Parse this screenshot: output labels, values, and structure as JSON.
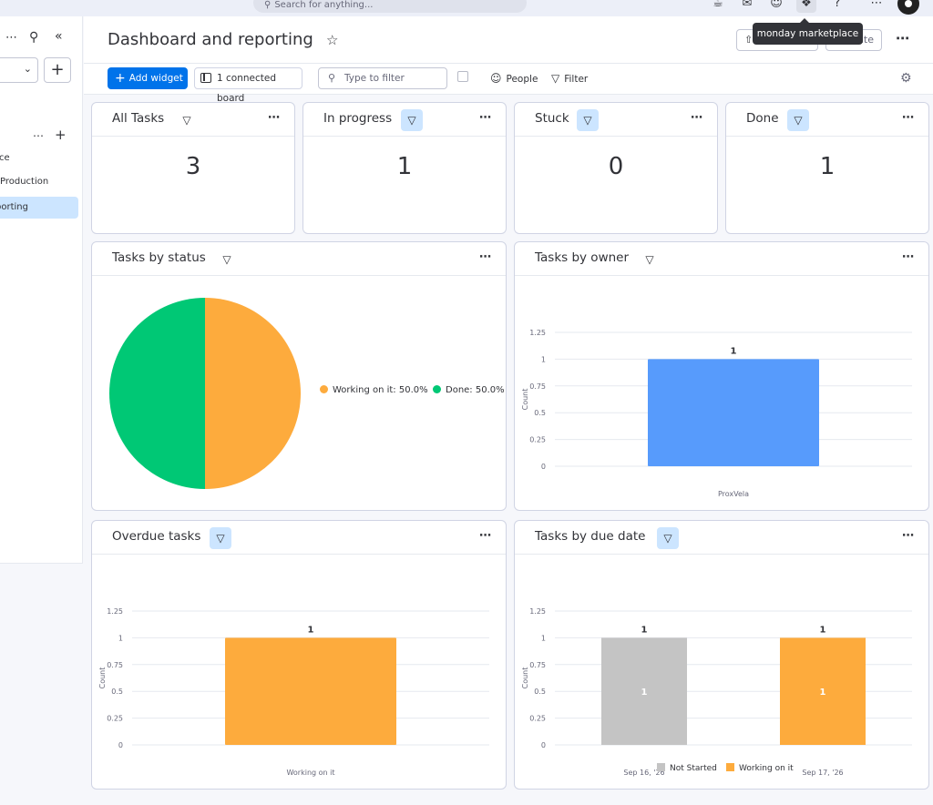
{
  "topbar": {
    "search_placeholder": "Search for anything...",
    "tooltip": "monday marketplace"
  },
  "sidebar": {
    "items": [
      {
        "label": "ce",
        "active": false
      },
      {
        "label": "Production",
        "active": false
      },
      {
        "label": "porting",
        "active": true
      }
    ]
  },
  "header": {
    "title": "Dashboard and reporting",
    "btn2_label": "ite"
  },
  "toolbar": {
    "add_widget": "Add widget",
    "connected_board": "1 connected board",
    "filter_placeholder": "Type to filter",
    "people": "People",
    "filter": "Filter"
  },
  "widgets": {
    "counters": [
      {
        "title": "All Tasks",
        "value": "3",
        "filter_active": false
      },
      {
        "title": "In progress",
        "value": "1",
        "filter_active": true
      },
      {
        "title": "Stuck",
        "value": "0",
        "filter_active": true
      },
      {
        "title": "Done",
        "value": "1",
        "filter_active": true
      }
    ],
    "status": {
      "title": "Tasks by status"
    },
    "owner": {
      "title": "Tasks by owner"
    },
    "overdue": {
      "title": "Overdue tasks"
    },
    "due": {
      "title": "Tasks by due date"
    }
  },
  "colors": {
    "working": "#fdab3d",
    "done": "#00c875",
    "owner_bar": "#579bfc",
    "not_started": "#c4c4c4",
    "accent": "#0073ea"
  },
  "chart_data": [
    {
      "type": "pie",
      "title": "Tasks by status",
      "slices": [
        {
          "name": "Working on it",
          "value": 50.0,
          "label": "Working on it: 50.0%"
        },
        {
          "name": "Done",
          "value": 50.0,
          "label": "Done: 50.0%"
        }
      ],
      "legend_position": "right"
    },
    {
      "type": "bar",
      "title": "Tasks by owner",
      "categories": [
        "ProxVela"
      ],
      "values": [
        1
      ],
      "ylabel": "Count",
      "ylim": [
        0,
        1.25
      ],
      "yticks": [
        "0",
        "0.25",
        "0.5",
        "0.75",
        "1",
        "1.25"
      ],
      "data_labels": [
        "1"
      ]
    },
    {
      "type": "bar",
      "title": "Overdue tasks",
      "categories": [
        "Working on it"
      ],
      "values": [
        1
      ],
      "ylabel": "Count",
      "ylim": [
        0,
        1.25
      ],
      "yticks": [
        "0",
        "0.25",
        "0.5",
        "0.75",
        "1",
        "1.25"
      ],
      "data_labels": [
        "1"
      ]
    },
    {
      "type": "bar",
      "title": "Tasks by due date",
      "categories": [
        "Sep 16, '26",
        "Sep 17, '26"
      ],
      "series": [
        {
          "name": "Not Started",
          "values": [
            1,
            0
          ]
        },
        {
          "name": "Working on it",
          "values": [
            0,
            1
          ]
        }
      ],
      "stacked": true,
      "ylabel": "Count",
      "ylim": [
        0,
        1.25
      ],
      "yticks": [
        "0",
        "0.25",
        "0.5",
        "0.75",
        "1",
        "1.25"
      ],
      "total_labels": [
        "1",
        "1"
      ],
      "segment_labels": [
        "1",
        "1"
      ],
      "legend_position": "bottom"
    }
  ]
}
